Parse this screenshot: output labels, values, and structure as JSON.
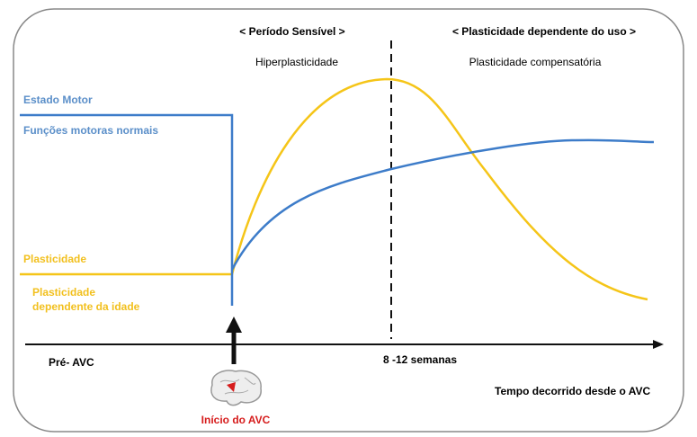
{
  "header": {
    "sensitive_period": "< Período Sensível >",
    "use_dependent": "< Plasticidade dependente do uso >",
    "hyperplasticity": "Hiperplasticidade",
    "compensatory": "Plasticidade compensatória"
  },
  "labels": {
    "motor_state": "Estado Motor",
    "normal_motor": "Funções motoras normais",
    "plasticity": "Plasticidade",
    "age_plasticity": [
      "Plasticidade",
      "dependente da idade"
    ]
  },
  "timeline": {
    "pre": "Pré- AVC",
    "weeks": "8 -12 semanas",
    "elapsed": "Tempo decorrido desde o AVC",
    "onset": "Início do AVC"
  }
}
